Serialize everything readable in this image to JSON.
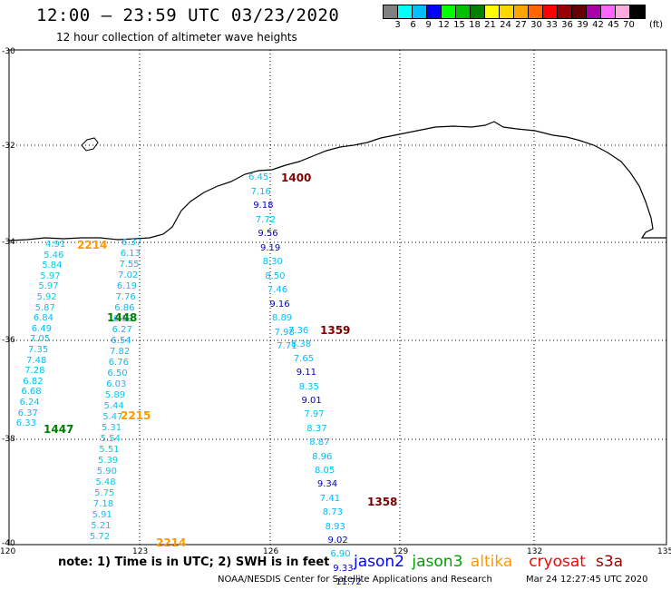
{
  "header": {
    "title": "12:00 — 23:59 UTC 03/23/2020",
    "subtitle": "12 hour collection of altimeter wave heights"
  },
  "legend": {
    "colors": [
      "#808080",
      "#00ffff",
      "#00bfff",
      "#0000ff",
      "#00ff00",
      "#00c000",
      "#008000",
      "#ffff00",
      "#ffd700",
      "#ffa500",
      "#ff6600",
      "#ff0000",
      "#990000",
      "#660000",
      "#aa00aa",
      "#ff66ff",
      "#ffaadd",
      "#000000"
    ],
    "labels": [
      "3",
      "6",
      "9",
      "12",
      "15",
      "18",
      "21",
      "24",
      "27",
      "30",
      "33",
      "36",
      "39",
      "42",
      "45",
      "70"
    ],
    "unit": "(ft)"
  },
  "axes": {
    "x_ticks": [
      "120",
      "123",
      "126",
      "129",
      "132",
      "135"
    ],
    "y_ticks": [
      "-30",
      "-32",
      "-34",
      "-36",
      "-38",
      "-40"
    ]
  },
  "colors": {
    "cyan": "#00bfff",
    "blue": "#0000cc",
    "green": "#008000",
    "orange": "#ff9900",
    "darkred": "#800000",
    "red": "#ff0000"
  },
  "tracks": {
    "jason2_center": {
      "time": "1400",
      "values": [
        "6.45",
        "7.16",
        "9.18",
        "7.72",
        "9.56",
        "9.19",
        "8.30",
        "8.50",
        "7.46",
        "9.16",
        "8.89",
        "7.98",
        "7.71"
      ]
    },
    "jason2_center_mid": {
      "time": "1359",
      "values": [
        "7.36",
        "8.38",
        "7.65",
        "9.11",
        "8.35",
        "9.01",
        "7.97",
        "8.37",
        "8.87",
        "8.96",
        "8.05",
        "9.34",
        "7.41",
        "8.73",
        "8.93",
        "9.02",
        "6.90",
        "9.33",
        "11.72"
      ]
    },
    "jason2_center_bot": {
      "time": "1358"
    },
    "west_a": {
      "time": "1448",
      "values": [
        "6.37",
        "6.13",
        "7.55",
        "7.02",
        "6.19",
        "7.76",
        "6.86",
        "6.53",
        "6.27",
        "6.54",
        "7.82",
        "6.76",
        "6.50",
        "6.03",
        "5.89",
        "5.44",
        "5.47",
        "5.31",
        "5.54",
        "5.51",
        "5.39",
        "5.90",
        "5.48",
        "5.75",
        "7.18",
        "5.91",
        "5.21",
        "5.72"
      ]
    },
    "west_a_time2": "2215",
    "west_a_time3": "2214",
    "west_b": {
      "time": "1447",
      "values": [
        "4.91",
        "5.46",
        "5.84",
        "5.97",
        "5.97",
        "5.92",
        "5.87",
        "6.84",
        "6.49",
        "7.05",
        "7.35",
        "7.48",
        "7.28",
        "6.82",
        "6.68",
        "6.24",
        "6.37",
        "6.33"
      ]
    },
    "west_b_time": "2214"
  },
  "footer": {
    "note": "note:  1) Time is in UTC;  2) SWH is in feet",
    "satellites": [
      {
        "name": "jason2",
        "color": "#0000ff"
      },
      {
        "name": "jason3",
        "color": "#00a000"
      },
      {
        "name": "altika",
        "color": "#ff9900"
      },
      {
        "name": "cryosat",
        "color": "#ff0000"
      },
      {
        "name": "s3a",
        "color": "#990000"
      }
    ],
    "credit": "NOAA/NESDIS Center for Satellite Applications and Research",
    "timestamp": "Mar 24 12:27:45 UTC 2020"
  }
}
